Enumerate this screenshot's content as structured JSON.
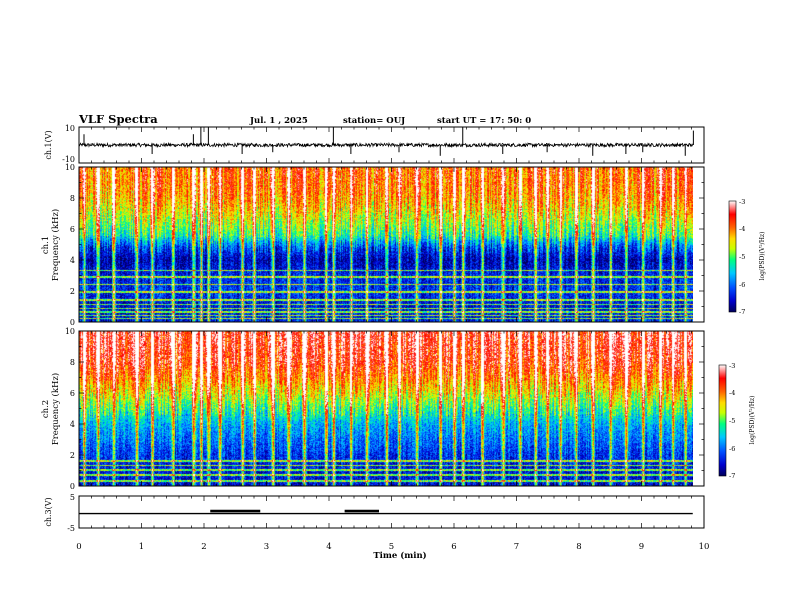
{
  "header": {
    "title": "VLF Spectra",
    "date": "Jul.  1 , 2025",
    "station": "station= OUJ",
    "start": "start  UT  =   17: 50: 0"
  },
  "colors": {
    "colormap": [
      "#00005a",
      "#0000cd",
      "#0050ff",
      "#00c8ff",
      "#00ff80",
      "#c8ff00",
      "#ffdc00",
      "#ff6400",
      "#ff0000",
      "#ffffff"
    ],
    "trace": "#000000",
    "axis": "#000000"
  },
  "chart_data": [
    {
      "id": "ch1_waveform",
      "type": "line",
      "ylabel": "ch.1(V)",
      "ylim": [
        -10,
        10
      ],
      "yticks": [
        "10",
        "-10"
      ],
      "xlim": [
        0,
        10
      ],
      "baseline_v": 0,
      "noise_v": 0.6,
      "spikes": [
        {
          "t": 0.08,
          "v": 6
        },
        {
          "t": 1.17,
          "v": -5
        },
        {
          "t": 1.83,
          "v": 6
        },
        {
          "t": 1.95,
          "v": 10
        },
        {
          "t": 2.07,
          "v": 10
        },
        {
          "t": 2.61,
          "v": -5
        },
        {
          "t": 3.1,
          "v": -4
        },
        {
          "t": 4.07,
          "v": 10
        },
        {
          "t": 4.35,
          "v": -5
        },
        {
          "t": 5.12,
          "v": -4
        },
        {
          "t": 5.78,
          "v": -6
        },
        {
          "t": 6.14,
          "v": 10
        },
        {
          "t": 6.78,
          "v": -5
        },
        {
          "t": 7.49,
          "v": -4
        },
        {
          "t": 8.22,
          "v": -6
        },
        {
          "t": 8.75,
          "v": -5
        },
        {
          "t": 9.02,
          "v": -4
        },
        {
          "t": 9.7,
          "v": -6
        },
        {
          "t": 9.83,
          "v": 8
        }
      ]
    },
    {
      "id": "ch1_spectrogram",
      "type": "heatmap",
      "ylabel_lines": [
        "ch.1",
        "Frequency (kHz)"
      ],
      "xlim": [
        0,
        9.82
      ],
      "ylim": [
        0,
        10
      ],
      "yticks": [
        "0",
        "2",
        "4",
        "6",
        "8",
        "10"
      ],
      "colorbar": {
        "label": "log(PSD)(V²/Hz)",
        "range": [
          -7,
          -3
        ],
        "ticks": [
          "-3",
          "-4",
          "-5",
          "-6",
          "-7"
        ]
      },
      "background_log_psd_by_freq_khz": [
        [
          0,
          -6.4
        ],
        [
          1,
          -6.5
        ],
        [
          2,
          -6.3
        ],
        [
          3,
          -6.4
        ],
        [
          4,
          -6.7
        ],
        [
          4.8,
          -6.2
        ],
        [
          5.6,
          -5.2
        ],
        [
          6.4,
          -4.8
        ],
        [
          7.5,
          -4.3
        ],
        [
          8.5,
          -4.0
        ],
        [
          10,
          -3.9
        ]
      ],
      "constant_lines_khz": [
        0.2,
        0.4,
        0.6,
        0.85,
        1.1,
        1.4,
        1.9,
        2.4,
        2.9,
        3.3
      ],
      "sferic_times_min": [
        0.08,
        0.3,
        0.55,
        0.92,
        1.17,
        1.5,
        1.83,
        1.95,
        2.07,
        2.25,
        2.61,
        2.8,
        3.1,
        3.35,
        3.6,
        3.95,
        4.07,
        4.35,
        4.6,
        4.92,
        5.12,
        5.4,
        5.78,
        6.0,
        6.14,
        6.45,
        6.78,
        7.05,
        7.3,
        7.49,
        7.7,
        7.95,
        8.22,
        8.5,
        8.75,
        9.02,
        9.3,
        9.5,
        9.7
      ]
    },
    {
      "id": "ch2_spectrogram",
      "type": "heatmap",
      "ylabel_lines": [
        "ch.2",
        "Frequency (kHz)"
      ],
      "xlim": [
        0,
        9.82
      ],
      "ylim": [
        0,
        10
      ],
      "yticks": [
        "0",
        "2",
        "4",
        "6",
        "8",
        "10"
      ],
      "colorbar": {
        "label": "log(PSD)(V²/Hz)",
        "range": [
          -7,
          -3
        ],
        "ticks": [
          "-3",
          "-4",
          "-5",
          "-6",
          "-7"
        ]
      },
      "background_log_psd_by_freq_khz": [
        [
          0,
          -6.5
        ],
        [
          1,
          -6.5
        ],
        [
          2,
          -6.3
        ],
        [
          3,
          -6.0
        ],
        [
          4,
          -5.7
        ],
        [
          5,
          -5.1
        ],
        [
          6,
          -4.5
        ],
        [
          7,
          -4.0
        ],
        [
          8,
          -3.6
        ],
        [
          10,
          -3.4
        ]
      ],
      "constant_lines_khz": [
        0.3,
        0.7,
        1.0,
        1.3,
        1.6
      ],
      "sferic_times_min": [
        0.08,
        0.3,
        0.55,
        0.92,
        1.17,
        1.5,
        1.83,
        1.95,
        2.07,
        2.25,
        2.61,
        2.8,
        3.1,
        3.35,
        3.6,
        3.95,
        4.07,
        4.35,
        4.6,
        4.92,
        5.12,
        5.4,
        5.78,
        6.0,
        6.14,
        6.45,
        6.78,
        7.05,
        7.3,
        7.49,
        7.7,
        7.95,
        8.22,
        8.5,
        8.75,
        9.02,
        9.3,
        9.5,
        9.7
      ]
    },
    {
      "id": "ch3_signal",
      "type": "line",
      "ylabel": "ch.3(V)",
      "ylim": [
        -5,
        5
      ],
      "yticks": [
        "5",
        "-5"
      ],
      "xlim": [
        0,
        10
      ],
      "baseline_v": -0.5,
      "segments": [
        {
          "t0": 0,
          "t1": 9.82,
          "v": -0.5
        },
        {
          "t0": 2.1,
          "t1": 2.9,
          "v": 0.3
        },
        {
          "t0": 4.25,
          "t1": 4.8,
          "v": 0.3
        }
      ]
    }
  ],
  "xaxis": {
    "label": "Time  (min)",
    "range": [
      0,
      10
    ],
    "ticks": [
      "0",
      "1",
      "2",
      "3",
      "4",
      "5",
      "6",
      "7",
      "8",
      "9",
      "10"
    ]
  }
}
